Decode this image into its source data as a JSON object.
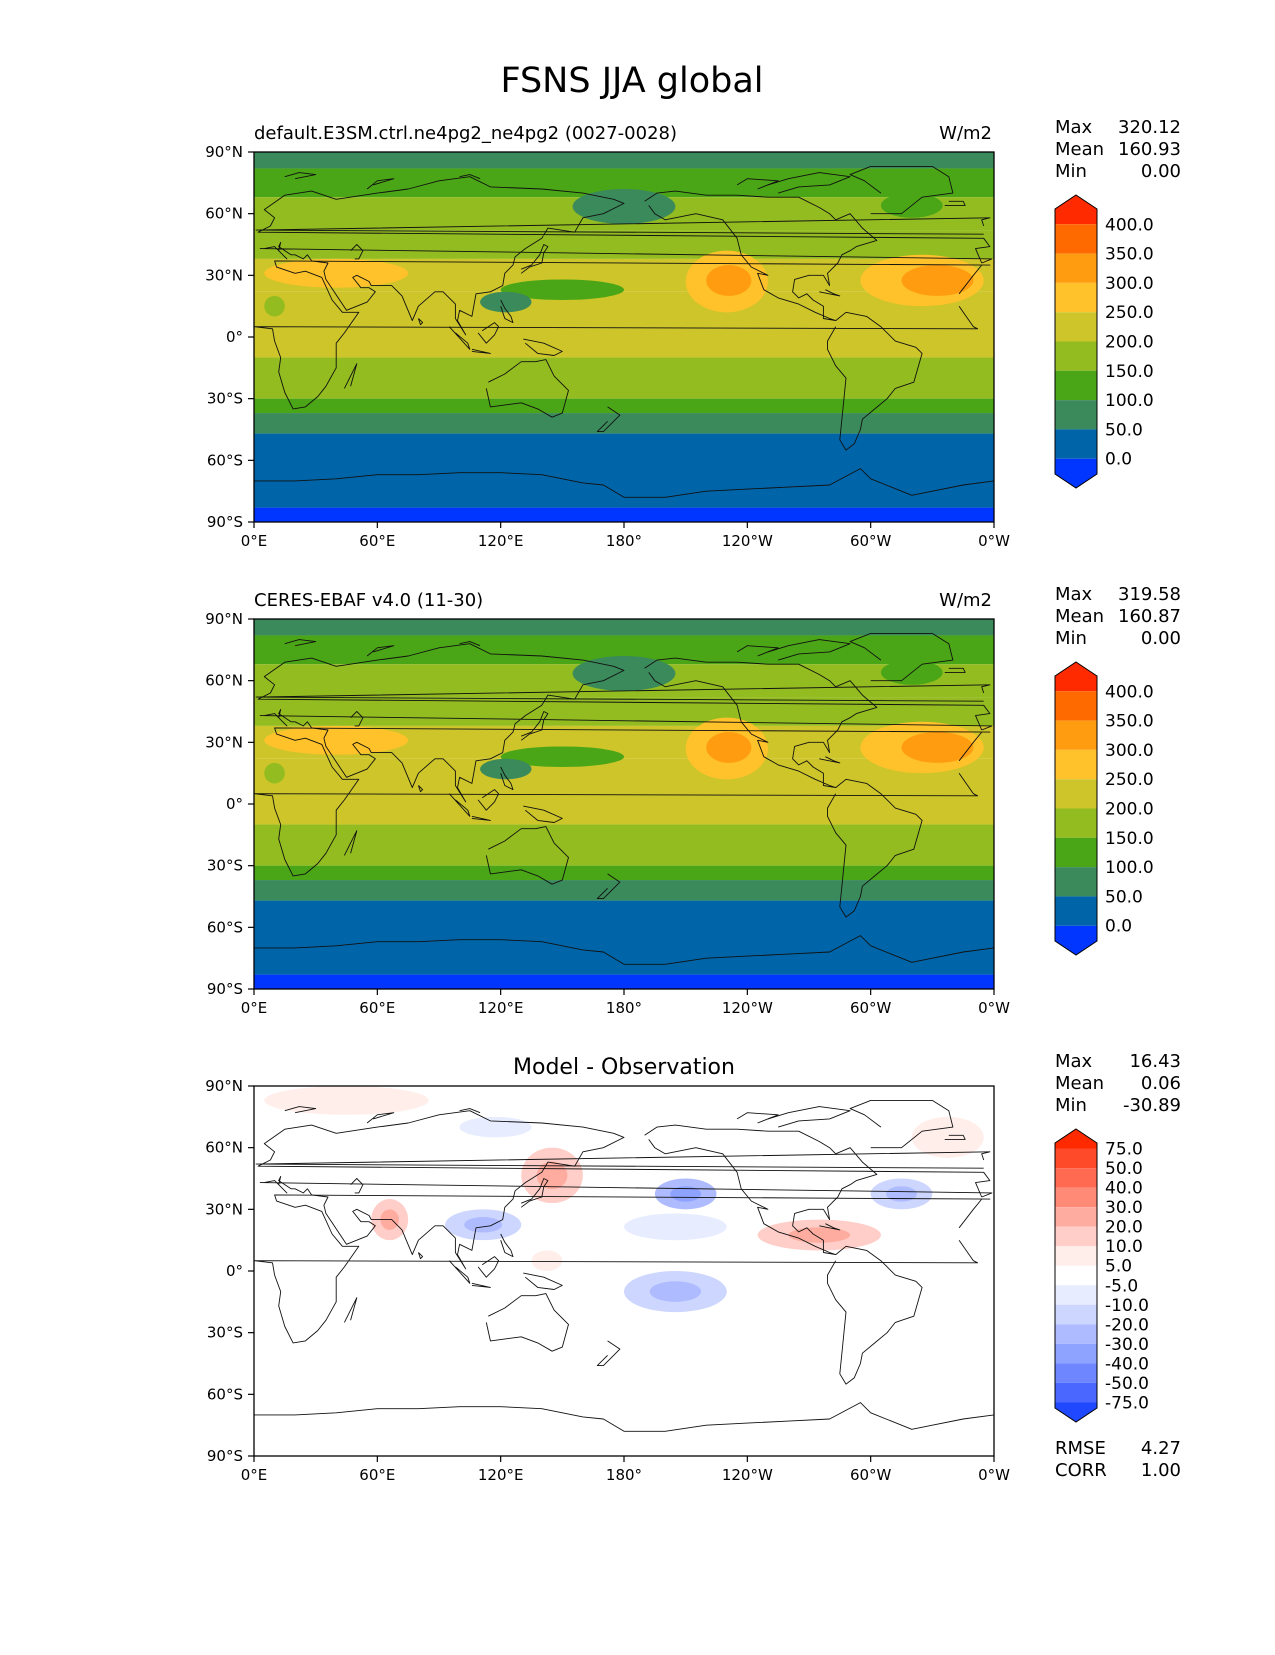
{
  "figure_title": "FSNS JJA global",
  "panels": [
    {
      "id": "test",
      "left_title": "default.E3SM.ctrl.ne4pg2_ne4pg2 (0027-0028)",
      "center_title": "",
      "units": "W/m2",
      "stats": [
        {
          "label": "Max",
          "value": "320.12"
        },
        {
          "label": "Mean",
          "value": "160.93"
        },
        {
          "label": "Min",
          "value": "0.00"
        }
      ],
      "colorbar": {
        "labels": [
          "400.0",
          "350.0",
          "300.0",
          "250.0",
          "200.0",
          "150.0",
          "100.0",
          "50.0",
          "0.0"
        ],
        "colors": [
          "#ff2a00",
          "#ff6a00",
          "#ff9c10",
          "#ffc22a",
          "#cdc52a",
          "#92bc20",
          "#4aa616",
          "#3b8a5c",
          "#0065a8",
          "#0036ff"
        ]
      }
    },
    {
      "id": "reference",
      "left_title": "CERES-EBAF v4.0 (11-30)",
      "center_title": "",
      "units": "W/m2",
      "stats": [
        {
          "label": "Max",
          "value": "319.58"
        },
        {
          "label": "Mean",
          "value": "160.87"
        },
        {
          "label": "Min",
          "value": "0.00"
        }
      ],
      "colorbar": {
        "labels": [
          "400.0",
          "350.0",
          "300.0",
          "250.0",
          "200.0",
          "150.0",
          "100.0",
          "50.0",
          "0.0"
        ],
        "colors": [
          "#ff2a00",
          "#ff6a00",
          "#ff9c10",
          "#ffc22a",
          "#cdc52a",
          "#92bc20",
          "#4aa616",
          "#3b8a5c",
          "#0065a8",
          "#0036ff"
        ]
      }
    },
    {
      "id": "diff",
      "left_title": "",
      "center_title": "Model - Observation",
      "units": "",
      "stats": [
        {
          "label": "Max",
          "value": "16.43"
        },
        {
          "label": "Mean",
          "value": "0.06"
        },
        {
          "label": "Min",
          "value": "-30.89"
        }
      ],
      "extra_stats": [
        {
          "label": "RMSE",
          "value": "4.27"
        },
        {
          "label": "CORR",
          "value": "1.00"
        }
      ],
      "colorbar": {
        "labels": [
          "75.0",
          "50.0",
          "40.0",
          "30.0",
          "20.0",
          "10.0",
          "5.0",
          "-5.0",
          "-10.0",
          "-20.0",
          "-30.0",
          "-40.0",
          "-50.0",
          "-75.0"
        ],
        "colors": [
          "#ff2a00",
          "#ff4a2a",
          "#ff6a50",
          "#ff8a76",
          "#ffaca0",
          "#ffcec8",
          "#ffeeea",
          "#ffffff",
          "#e8ecff",
          "#cdd6ff",
          "#aebcff",
          "#8ea2ff",
          "#6e86ff",
          "#4a68ff",
          "#2048ff"
        ]
      }
    }
  ],
  "axes": {
    "lat_ticks": [
      "90°N",
      "60°N",
      "30°N",
      "0°",
      "30°S",
      "60°S",
      "90°S"
    ],
    "lon_ticks": [
      "0°E",
      "60°E",
      "120°E",
      "180°",
      "120°W",
      "60°W",
      "0°W"
    ]
  },
  "map_data": {
    "projection": "plate-carree",
    "lon_range": [
      0,
      360
    ],
    "lat_range": [
      -90,
      90
    ],
    "field_base_zonal": [
      {
        "lat": [
          82,
          90
        ],
        "value": 75
      },
      {
        "lat": [
          68,
          82
        ],
        "value": 125
      },
      {
        "lat": [
          52,
          68
        ],
        "value": 175
      },
      {
        "lat": [
          38,
          52
        ],
        "value": 175
      },
      {
        "lat": [
          22,
          38
        ],
        "value": 225
      },
      {
        "lat": [
          -10,
          22
        ],
        "value": 225
      },
      {
        "lat": [
          -18,
          -10
        ],
        "value": 175
      },
      {
        "lat": [
          -30,
          -18
        ],
        "value": 175
      },
      {
        "lat": [
          -37,
          -30
        ],
        "value": 125
      },
      {
        "lat": [
          -47,
          -37
        ],
        "value": 75
      },
      {
        "lat": [
          -83,
          -47
        ],
        "value": 25
      },
      {
        "lat": [
          -90,
          -83
        ],
        "value": -25
      }
    ],
    "field_features": [
      {
        "lon": [
          120,
          180
        ],
        "lat": [
          18,
          28
        ],
        "value": 125
      },
      {
        "lon": [
          110,
          135
        ],
        "lat": [
          12,
          22
        ],
        "value": 75
      },
      {
        "lon": [
          210,
          250
        ],
        "lat": [
          12,
          42
        ],
        "value": 275
      },
      {
        "lon": [
          220,
          242
        ],
        "lat": [
          20,
          35
        ],
        "value": 325
      },
      {
        "lon": [
          295,
          355
        ],
        "lat": [
          15,
          40
        ],
        "value": 275
      },
      {
        "lon": [
          315,
          350
        ],
        "lat": [
          20,
          35
        ],
        "value": 325
      },
      {
        "lon": [
          5,
          75
        ],
        "lat": [
          24,
          38
        ],
        "value": 275
      },
      {
        "lon": [
          155,
          205
        ],
        "lat": [
          55,
          72
        ],
        "value": 75
      },
      {
        "lon": [
          305,
          335
        ],
        "lat": [
          58,
          70
        ],
        "value": 125
      },
      {
        "lon": [
          5,
          15
        ],
        "lat": [
          10,
          20
        ],
        "value": 175
      }
    ],
    "diff_features": [
      {
        "lon": [
          5,
          85
        ],
        "lat": [
          76,
          90
        ],
        "value": 7
      },
      {
        "lon": [
          57,
          75
        ],
        "lat": [
          15,
          35
        ],
        "value": 12
      },
      {
        "lon": [
          130,
          160
        ],
        "lat": [
          33,
          60
        ],
        "value": 12
      },
      {
        "lon": [
          93,
          130
        ],
        "lat": [
          15,
          30
        ],
        "value": -12
      },
      {
        "lon": [
          100,
          135
        ],
        "lat": [
          65,
          75
        ],
        "value": -8
      },
      {
        "lon": [
          180,
          230
        ],
        "lat": [
          -20,
          0
        ],
        "value": -15
      },
      {
        "lon": [
          180,
          230
        ],
        "lat": [
          15,
          28
        ],
        "value": -8
      },
      {
        "lon": [
          195,
          225
        ],
        "lat": [
          30,
          45
        ],
        "value": -22
      },
      {
        "lon": [
          245,
          305
        ],
        "lat": [
          10,
          25
        ],
        "value": 12
      },
      {
        "lon": [
          300,
          330
        ],
        "lat": [
          30,
          45
        ],
        "value": -12
      },
      {
        "lon": [
          320,
          355
        ],
        "lat": [
          55,
          75
        ],
        "value": 7
      },
      {
        "lon": [
          135,
          150
        ],
        "lat": [
          0,
          10
        ],
        "value": 7
      }
    ]
  }
}
